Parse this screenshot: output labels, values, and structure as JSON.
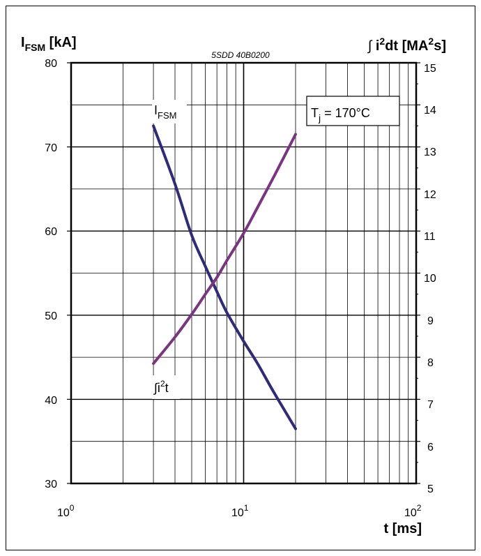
{
  "chart_data": {
    "type": "line",
    "reference": "5SDD 40B0200",
    "x_axis": {
      "label": "t [ms]",
      "scale": "log",
      "range": [
        1,
        100
      ],
      "tick_values": [
        1,
        10,
        100
      ],
      "tick_labels": [
        {
          "base": "10",
          "exp": "0"
        },
        {
          "base": "10",
          "exp": "1"
        },
        {
          "base": "10",
          "exp": "2"
        }
      ]
    },
    "y_left": {
      "label_main": "I",
      "label_sub": "FSM",
      "label_rest": " [kA]",
      "range": [
        30,
        80
      ],
      "ticks": [
        "30",
        "40",
        "50",
        "60",
        "70",
        "80"
      ]
    },
    "y_right": {
      "label_prefix": "∫ ",
      "label_main": "i",
      "label_sup": "2",
      "label_mid": "dt [MA",
      "label_sup2": "2",
      "label_end": "s]",
      "range": [
        5,
        15
      ],
      "ticks": [
        "5",
        "6",
        "7",
        "8",
        "9",
        "10",
        "11",
        "12",
        "13",
        "14",
        "15"
      ]
    },
    "grid": true,
    "annotation": {
      "main": "T",
      "sub": "j",
      "rest": " = 170°C"
    },
    "series": [
      {
        "name": "IFSM",
        "label_main": "I",
        "label_sub": "FSM",
        "axis": "left",
        "color": "#2d2b7a",
        "x": [
          3,
          4,
          5,
          6,
          7,
          8,
          10,
          12,
          15,
          20
        ],
        "y": [
          72.5,
          65.6,
          59.5,
          55.8,
          52.8,
          50.3,
          46.9,
          44.3,
          40.8,
          36.5
        ]
      },
      {
        "name": "∫i²t",
        "label_prefix": "∫i",
        "label_sup": "2",
        "label_end": "t",
        "axis": "right",
        "color": "#7b3580",
        "x": [
          3,
          4,
          5,
          6,
          7,
          8,
          10,
          12,
          15,
          20
        ],
        "y": [
          7.85,
          8.48,
          9.02,
          9.5,
          9.9,
          10.3,
          10.95,
          11.55,
          12.3,
          13.3
        ]
      }
    ]
  }
}
